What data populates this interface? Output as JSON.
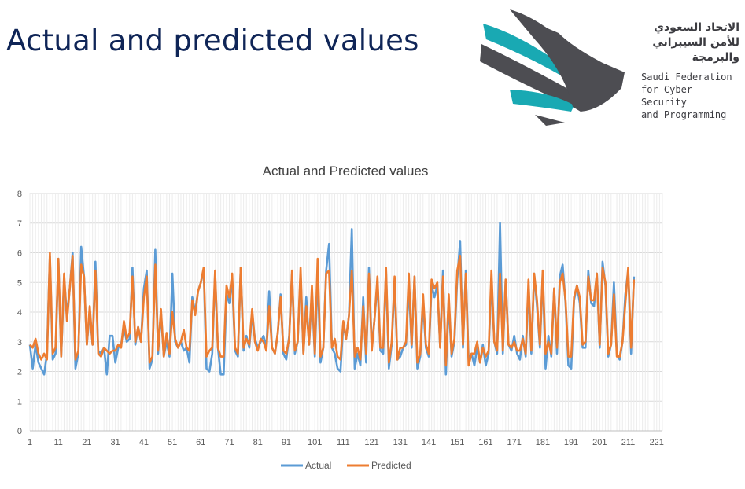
{
  "slide": {
    "title": "Actual and predicted values"
  },
  "logo": {
    "name_ar_1": "الاتحاد السعودي",
    "name_ar_2": "للأمن السيبراني",
    "name_ar_3": "والبرمجة",
    "name_en": "Saudi Federation\nfor Cyber Security\nand Programming",
    "colors": {
      "teal": "#19a9b3",
      "gray": "#4d4d52"
    }
  },
  "chart_data": {
    "type": "line",
    "title": "Actual and Predicted values",
    "xlabel": "",
    "ylabel": "",
    "ylim": [
      0,
      8
    ],
    "yticks": [
      0,
      1,
      2,
      3,
      4,
      5,
      6,
      7,
      8
    ],
    "xticks": [
      1,
      11,
      21,
      31,
      41,
      51,
      61,
      71,
      81,
      91,
      101,
      111,
      121,
      131,
      141,
      151,
      161,
      171,
      181,
      191,
      201,
      211,
      221
    ],
    "x_range": [
      1,
      223
    ],
    "grid": "vertical and horizontal",
    "legend_position": "bottom",
    "series": [
      {
        "name": "Actual",
        "color": "#5b9bd5",
        "values": [
          2.9,
          2.1,
          2.9,
          2.3,
          2.1,
          1.9,
          2.6,
          5.9,
          2.4,
          2.6,
          5.8,
          2.5,
          5.1,
          3.9,
          4.8,
          6.0,
          2.1,
          2.6,
          6.2,
          5.2,
          2.9,
          4.0,
          2.9,
          5.7,
          2.7,
          2.6,
          2.8,
          1.9,
          3.2,
          3.2,
          2.3,
          2.8,
          2.9,
          3.5,
          3.0,
          3.1,
          5.5,
          2.9,
          3.5,
          3.0,
          4.8,
          5.4,
          2.1,
          2.4,
          6.1,
          2.6,
          4.0,
          2.5,
          3.0,
          2.5,
          5.3,
          3.0,
          2.8,
          3.0,
          2.7,
          2.8,
          2.3,
          4.5,
          4.0,
          4.7,
          5.0,
          5.4,
          2.1,
          2.0,
          2.6,
          5.3,
          2.8,
          1.9,
          1.9,
          4.6,
          4.3,
          5.1,
          2.7,
          2.5,
          5.5,
          2.7,
          3.2,
          2.8,
          3.9,
          3.1,
          2.8,
          3.0,
          3.2,
          2.8,
          4.7,
          2.8,
          2.6,
          3.3,
          4.6,
          2.6,
          2.4,
          3.2,
          5.3,
          2.6,
          3.0,
          5.3,
          2.6,
          4.5,
          2.9,
          4.6,
          2.5,
          5.3,
          2.3,
          2.8,
          5.4,
          6.3,
          2.8,
          2.6,
          2.1,
          2.0,
          3.6,
          3.1,
          3.9,
          6.8,
          2.1,
          2.6,
          2.2,
          4.5,
          2.3,
          5.5,
          2.8,
          3.8,
          5.0,
          2.7,
          2.6,
          5.4,
          2.1,
          2.9,
          5.0,
          2.4,
          2.5,
          2.8,
          2.9,
          4.9,
          2.8,
          5.2,
          2.1,
          2.5,
          4.3,
          2.8,
          2.5,
          4.9,
          4.5,
          4.9,
          2.8,
          5.4,
          1.9,
          4.4,
          2.5,
          3.0,
          5.1,
          6.4,
          2.8,
          5.4,
          2.4,
          2.6,
          2.2,
          2.8,
          2.3,
          2.9,
          2.2,
          2.6,
          5.1,
          3.0,
          2.6,
          7.0,
          2.6,
          5.1,
          2.9,
          2.7,
          3.2,
          2.6,
          2.4,
          3.2,
          2.5,
          4.8,
          2.6,
          5.3,
          4.2,
          2.8,
          5.3,
          2.1,
          3.2,
          2.5,
          4.8,
          2.6,
          5.2,
          5.6,
          4.3,
          2.2,
          2.1,
          4.4,
          4.9,
          4.3,
          2.8,
          2.8,
          5.4,
          4.3,
          4.2,
          5.3,
          2.8,
          5.7,
          4.9,
          2.5,
          2.9,
          5.0,
          2.6,
          2.4,
          3.0,
          4.6,
          5.4,
          2.6,
          5.2
        ]
      },
      {
        "name": "Predicted",
        "color": "#ed7d31",
        "values": [
          2.9,
          2.8,
          3.1,
          2.6,
          2.4,
          2.6,
          2.4,
          6.0,
          2.6,
          2.8,
          5.8,
          2.5,
          5.3,
          3.7,
          4.8,
          5.9,
          2.4,
          2.7,
          5.6,
          5.2,
          2.9,
          4.2,
          2.9,
          5.4,
          2.6,
          2.5,
          2.8,
          2.7,
          2.6,
          2.7,
          2.7,
          2.9,
          2.8,
          3.7,
          3.1,
          3.3,
          5.2,
          3.0,
          3.5,
          3.0,
          4.5,
          5.2,
          2.3,
          2.5,
          5.6,
          2.7,
          4.1,
          2.5,
          3.3,
          2.6,
          4.0,
          3.1,
          2.8,
          3.0,
          3.4,
          2.8,
          2.7,
          4.4,
          3.9,
          4.7,
          5.0,
          5.5,
          2.5,
          2.7,
          2.8,
          5.4,
          2.8,
          2.5,
          2.5,
          4.9,
          4.5,
          5.3,
          2.8,
          2.6,
          5.5,
          2.8,
          3.1,
          2.9,
          4.1,
          3.0,
          2.7,
          3.1,
          3.0,
          2.7,
          4.2,
          2.8,
          2.6,
          3.3,
          4.5,
          2.7,
          2.6,
          3.1,
          5.4,
          2.7,
          3.0,
          5.5,
          2.6,
          4.2,
          2.9,
          4.9,
          2.6,
          5.8,
          2.5,
          2.8,
          5.3,
          5.4,
          2.8,
          3.1,
          2.5,
          2.4,
          3.7,
          3.1,
          3.9,
          5.4,
          2.5,
          2.8,
          2.4,
          4.2,
          2.6,
          5.3,
          2.7,
          3.8,
          5.2,
          2.8,
          2.8,
          5.5,
          2.3,
          3.0,
          5.2,
          2.4,
          2.8,
          2.8,
          3.0,
          5.3,
          2.9,
          5.2,
          2.3,
          2.6,
          4.6,
          2.9,
          2.6,
          5.1,
          4.8,
          5.0,
          2.8,
          5.2,
          2.2,
          4.6,
          2.6,
          3.1,
          5.4,
          5.9,
          2.9,
          5.3,
          2.2,
          2.6,
          2.6,
          3.0,
          2.3,
          2.8,
          2.5,
          2.7,
          5.4,
          3.0,
          2.7,
          5.3,
          2.7,
          5.1,
          2.9,
          2.8,
          3.0,
          2.7,
          2.7,
          3.1,
          2.6,
          5.1,
          2.7,
          5.3,
          4.4,
          2.9,
          5.4,
          2.6,
          3.0,
          2.6,
          4.8,
          2.8,
          5.0,
          5.3,
          4.4,
          2.5,
          2.5,
          4.5,
          4.9,
          4.5,
          2.9,
          3.0,
          5.2,
          4.4,
          4.4,
          5.3,
          2.9,
          5.5,
          5.0,
          2.6,
          2.9,
          4.6,
          2.5,
          2.5,
          3.0,
          4.3,
          5.5,
          2.8,
          5.1
        ]
      }
    ]
  }
}
